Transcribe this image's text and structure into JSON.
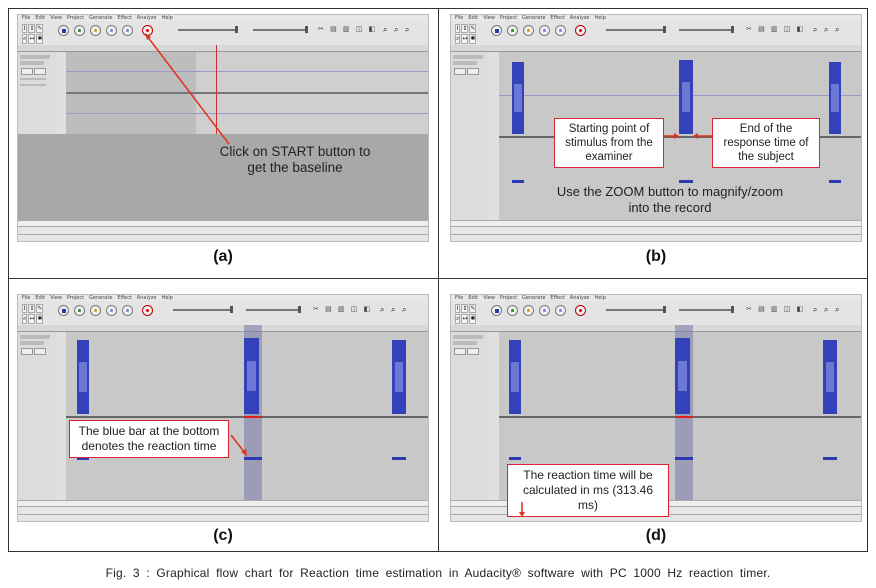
{
  "app": {
    "menu": [
      "File",
      "Edit",
      "View",
      "Project",
      "Generate",
      "Effect",
      "Analyze",
      "Help"
    ]
  },
  "panels": [
    {
      "label": "(a)",
      "callout": [
        "Click on START button to",
        "get the baseline"
      ]
    },
    {
      "label": "(b)",
      "callout_left": [
        "Starting point of",
        "stimulus from the",
        "examiner"
      ],
      "callout_right": [
        "End of the",
        "response time of",
        "the subject"
      ],
      "callout_bottom": [
        "Use the ZOOM button to magnify/zoom",
        "into the record"
      ]
    },
    {
      "label": "(c)",
      "callout": [
        "The blue bar at the bottom",
        "denotes the reaction time"
      ]
    },
    {
      "label": "(d)",
      "callout": [
        "The reaction time will be",
        "calculated in ms (313.46 ms)"
      ]
    }
  ],
  "caption": "Fig. 3 :  Graphical flow chart for Reaction time estimation in Audacity® software with PC 1000 Hz reaction timer.",
  "colors": {
    "waveform": "#3342b8",
    "arrow": "#e03020",
    "callout_border": "#d22233",
    "selection": "#7878aa"
  },
  "icons": [
    "pause-icon",
    "play-icon",
    "stop-icon",
    "skip-start-icon",
    "skip-end-icon",
    "record-icon",
    "selection-tool-icon",
    "zoom-in-icon",
    "zoom-out-icon"
  ]
}
